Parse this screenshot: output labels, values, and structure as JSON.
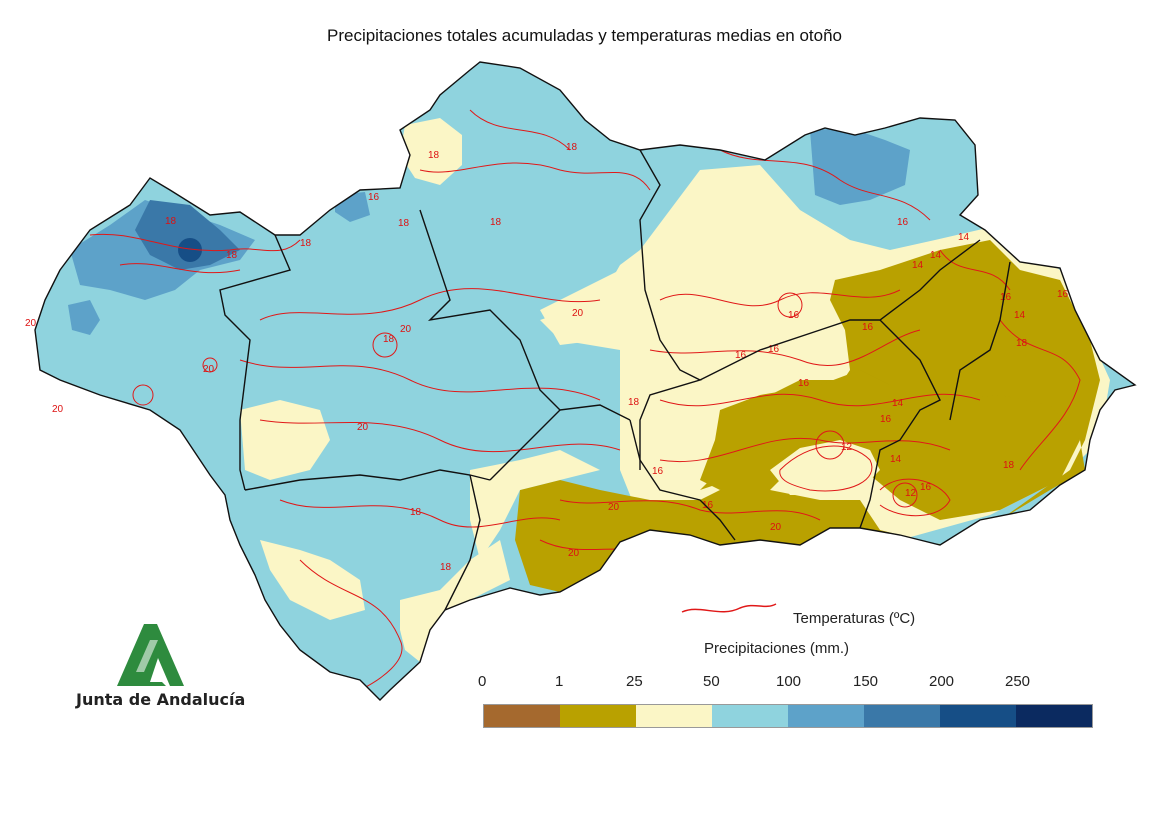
{
  "title": "Precipitaciones totales acumuladas y temperaturas medias en otoño",
  "logo": {
    "text": "Junta de Andalucía",
    "green": "#2e8b3e"
  },
  "legend": {
    "temperature_label": "Temperaturas (ºC)",
    "precipitation_label": "Precipitaciones (mm.)",
    "ticks": [
      "0",
      "1",
      "25",
      "50",
      "100",
      "150",
      "200",
      "250"
    ],
    "colors": [
      "#a5692e",
      "#b9a100",
      "#fbf6c6",
      "#8fd3de",
      "#5da2c9",
      "#3a78a8",
      "#164e86",
      "#0b2a60"
    ]
  },
  "colors": {
    "border": "#111111",
    "isotherm": "#e01818",
    "zone_light_blue": "#8fd3de",
    "zone_mid_blue": "#5da2c9",
    "zone_dark_blue": "#3a78a8",
    "zone_cream": "#fbf6c6",
    "zone_olive": "#b9a100"
  },
  "isotherm_labels": [
    "18",
    "18",
    "18",
    "18",
    "18",
    "20",
    "20",
    "20",
    "20",
    "20",
    "20",
    "18",
    "18",
    "16",
    "16",
    "16",
    "16",
    "14",
    "14",
    "16",
    "16",
    "16",
    "14",
    "12",
    "14",
    "16",
    "12",
    "18",
    "20",
    "20",
    "16",
    "18",
    "18",
    "16",
    "20",
    "14",
    "14",
    "16",
    "16",
    "18",
    "18",
    "16",
    "18"
  ]
}
